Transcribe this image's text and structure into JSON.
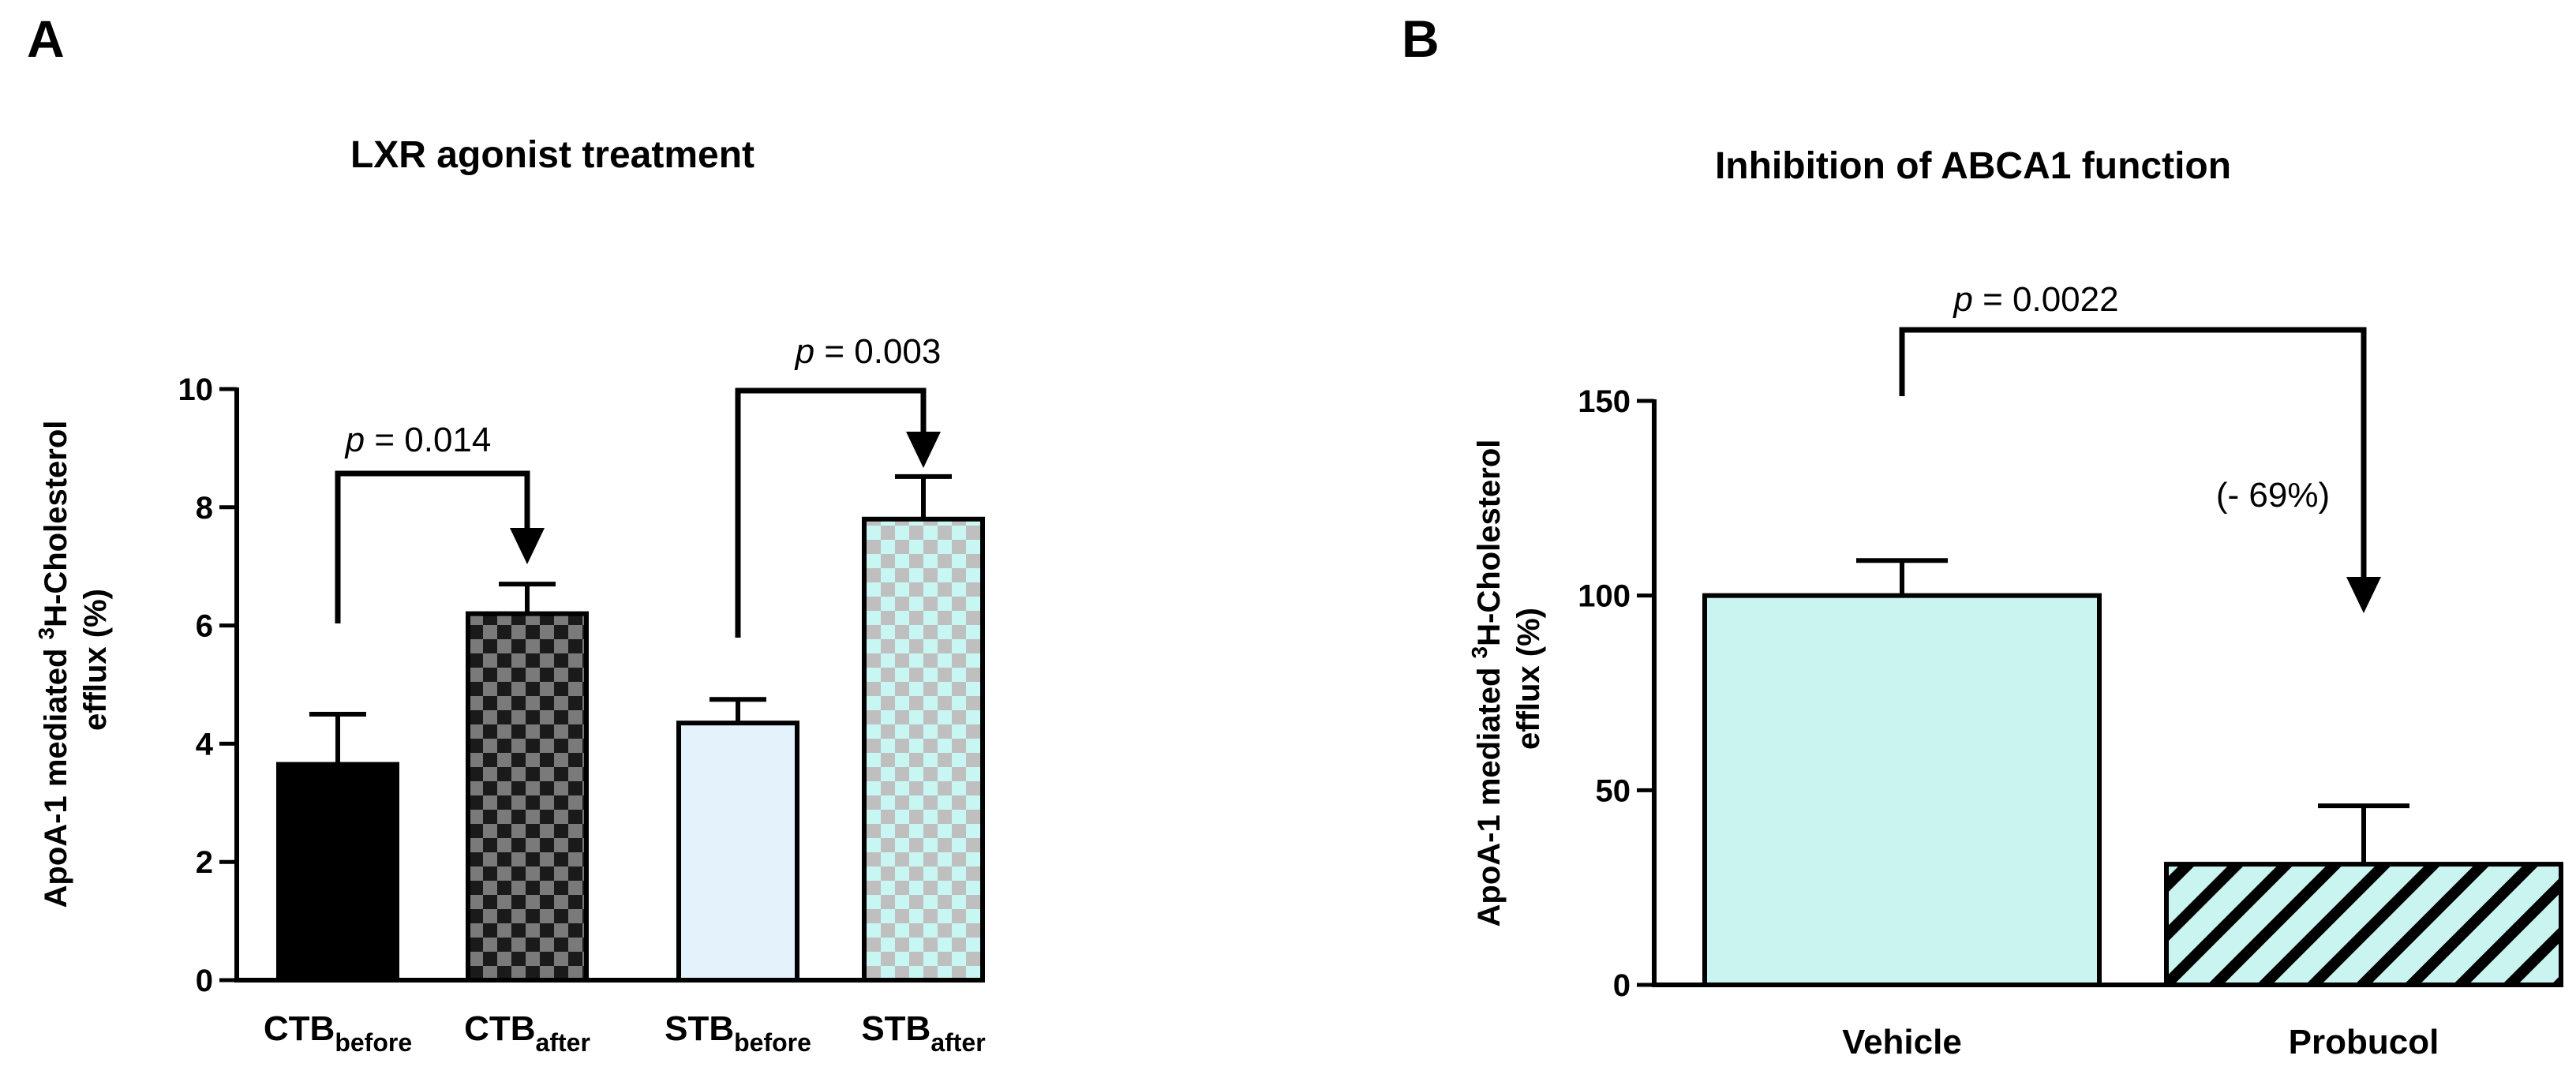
{
  "panels": {
    "a": {
      "letter": "A"
    },
    "b": {
      "letter": "B"
    }
  },
  "chart_data": [
    {
      "type": "bar",
      "title": "LXR agonist treatment",
      "ylabel": {
        "line1_prefix": "ApoA-1 mediated ",
        "line1_sup": "3",
        "line1_suffix": "H-Cholesterol",
        "line2": "efflux (%)"
      },
      "ylim": [
        0,
        10
      ],
      "yticks": [
        "0",
        "2",
        "4",
        "6",
        "8",
        "10"
      ],
      "categories": [
        {
          "main": "CTB",
          "sub": "before"
        },
        {
          "main": "CTB",
          "sub": "after"
        },
        {
          "main": "STB",
          "sub": "before"
        },
        {
          "main": "STB",
          "sub": "after"
        }
      ],
      "values": [
        3.65,
        6.2,
        4.35,
        7.8
      ],
      "errors": [
        0.85,
        0.5,
        0.4,
        0.72
      ],
      "colors": [
        "#000000",
        "#6f6f6f",
        "#e4f3fb",
        "#c6f4ef"
      ],
      "patterns": [
        "solid",
        "checker-black",
        "solid",
        "checker-grey"
      ],
      "comparisons": [
        {
          "from": 0,
          "to": 1,
          "label_italic": "p",
          "label_rest": " = 0.014"
        },
        {
          "from": 2,
          "to": 3,
          "label_italic": "p",
          "label_rest": " = 0.003"
        }
      ]
    },
    {
      "type": "bar",
      "title": "Inhibition of ABCA1 function",
      "ylabel": {
        "line1_prefix": "ApoA-1 mediated  ",
        "line1_sup": "3",
        "line1_suffix": "H-Cholesterol",
        "line2": "efflux (%)"
      },
      "ylim": [
        0,
        150
      ],
      "yticks": [
        "0",
        "50",
        "100",
        "150"
      ],
      "categories": [
        "Vehicle",
        "Probucol"
      ],
      "values": [
        100,
        31
      ],
      "errors": [
        9,
        15
      ],
      "colors": [
        "#c9f4f0",
        "#c9f4f0"
      ],
      "patterns": [
        "solid",
        "diagonal-stripes"
      ],
      "comparisons": [
        {
          "from": 0,
          "to": 1,
          "label_italic": "p",
          "label_rest": " = 0.0022",
          "annotation": "(- 69%)"
        }
      ]
    }
  ]
}
